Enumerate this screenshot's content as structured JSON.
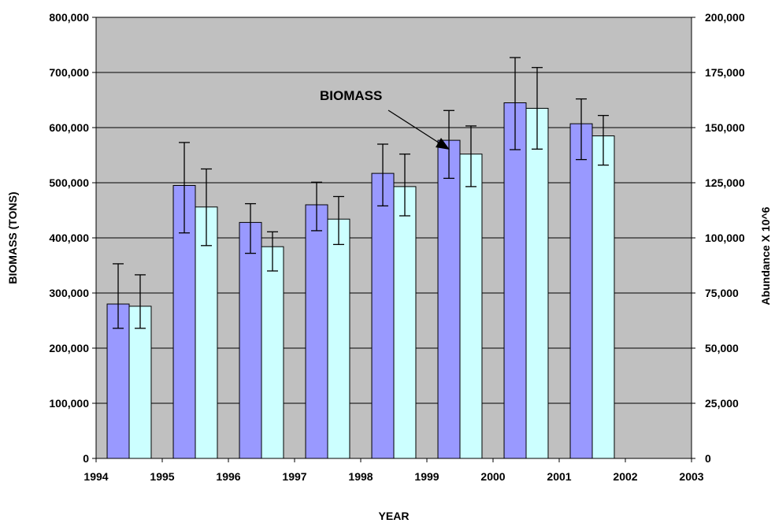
{
  "chart_data": {
    "type": "bar",
    "xlabel": "YEAR",
    "ylabel": "BIOMASS (TONS)",
    "y2label": "Abundance X 10^6",
    "annotation": "BIOMASS",
    "x_ticks": [
      "1994",
      "1995",
      "1996",
      "1997",
      "1998",
      "1999",
      "2000",
      "2001",
      "2002",
      "2003"
    ],
    "xlim": [
      1994,
      2003
    ],
    "ylim": [
      0,
      800000
    ],
    "y2lim": [
      0,
      200000
    ],
    "y_ticks": [
      "0",
      "100,000",
      "200,000",
      "300,000",
      "400,000",
      "500,000",
      "600,000",
      "700,000",
      "800,000"
    ],
    "y2_ticks": [
      "0",
      "25,000",
      "50,000",
      "75,000",
      "100,000",
      "125,000",
      "150,000",
      "175,000",
      "200,000"
    ],
    "grid": true,
    "background_color": "#c0c0c0",
    "categories": [
      1995,
      1996,
      1997,
      1998,
      1999,
      2000,
      2001,
      2002
    ],
    "series": [
      {
        "axis": "left",
        "color": "#9999ff",
        "values": [
          280000,
          495000,
          428000,
          460000,
          517000,
          577000,
          645000,
          607000
        ],
        "error_low": [
          236000,
          409000,
          372000,
          413000,
          458000,
          508000,
          560000,
          542000
        ],
        "error_high": [
          353000,
          573000,
          462000,
          501000,
          570000,
          631000,
          727000,
          652000
        ]
      },
      {
        "axis": "right",
        "color": "#ccffff",
        "values": [
          69000,
          114000,
          96000,
          108500,
          123250,
          138000,
          158750,
          146250
        ],
        "error_low": [
          59000,
          96500,
          85000,
          97000,
          110000,
          123250,
          140250,
          133000
        ],
        "error_high": [
          83250,
          131250,
          102750,
          118750,
          138000,
          150750,
          177250,
          155500
        ]
      }
    ]
  }
}
